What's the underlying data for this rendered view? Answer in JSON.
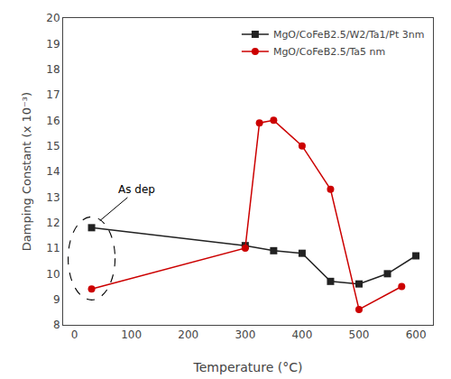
{
  "chart_data": {
    "type": "line",
    "xlabel": "Temperature (°C)",
    "ylabel": "Damping Constant (x 10⁻³)",
    "series": [
      {
        "name": "MgO/CoFeB2.5/W2/Ta1/Pt 3nm",
        "color": "#222222",
        "marker": "square",
        "x": [
          30,
          300,
          350,
          400,
          450,
          500,
          550,
          600
        ],
        "values": [
          11.8,
          11.1,
          10.9,
          10.8,
          9.7,
          9.6,
          10.0,
          10.7
        ]
      },
      {
        "name": "MgO/CoFeB2.5/Ta5 nm",
        "color": "#cc0000",
        "marker": "circle",
        "x": [
          30,
          300,
          325,
          350,
          400,
          450,
          500,
          575
        ],
        "values": [
          9.4,
          11.0,
          15.9,
          16.0,
          15.0,
          13.3,
          8.6,
          9.5
        ]
      }
    ],
    "xlim": [
      -20,
      630
    ],
    "xticks": [
      0,
      100,
      200,
      300,
      400,
      500,
      600
    ],
    "ylim": [
      8,
      20
    ],
    "yticks": [
      8,
      9,
      10,
      11,
      12,
      13,
      14,
      15,
      16,
      17,
      18,
      19,
      20
    ],
    "annotations": [
      "As dep"
    ],
    "legend": "upper right",
    "grid": false
  }
}
